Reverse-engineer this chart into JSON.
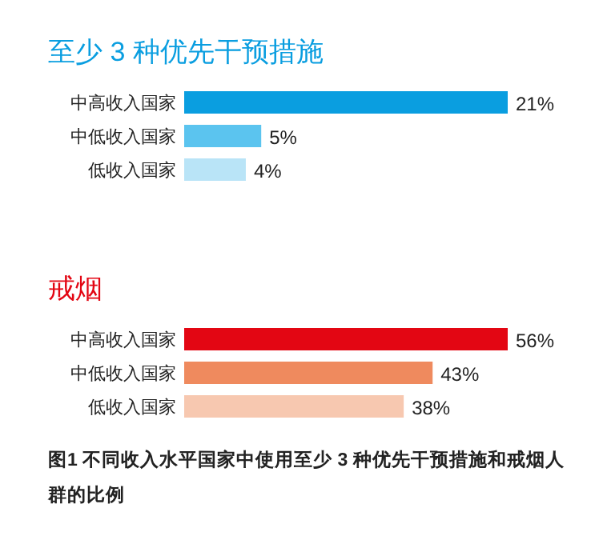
{
  "chart_data": [
    {
      "type": "bar",
      "orientation": "horizontal",
      "title": "至少 3 种优先干预措施",
      "categories": [
        "中高收入国家",
        "中低收入国家",
        "低收入国家"
      ],
      "values": [
        21,
        5,
        4
      ],
      "colors": [
        "#0a9ee0",
        "#5bc4ef",
        "#b9e4f7"
      ],
      "value_labels": [
        "21%",
        "5%",
        "4%"
      ]
    },
    {
      "type": "bar",
      "orientation": "horizontal",
      "title": "戒烟",
      "categories": [
        "中高收入国家",
        "中低收入国家",
        "低收入国家"
      ],
      "values": [
        56,
        43,
        38
      ],
      "colors": [
        "#e30613",
        "#ef8a5e",
        "#f7c8b0"
      ],
      "value_labels": [
        "56%",
        "43%",
        "38%"
      ],
      "annotations": [
        "图1  不同收入水平国家中使用至少 3 种优先干预措施和戒烟人群的比例"
      ]
    }
  ]
}
